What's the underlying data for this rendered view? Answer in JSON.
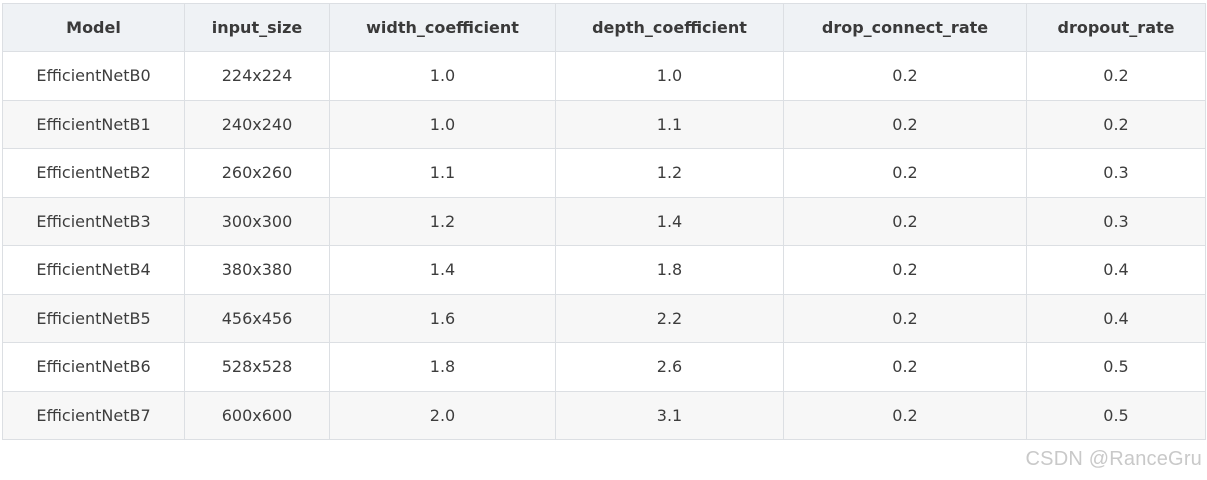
{
  "table": {
    "headers": [
      "Model",
      "input_size",
      "width_coefficient",
      "depth_coefficient",
      "drop_connect_rate",
      "dropout_rate"
    ],
    "rows": [
      [
        "EfficientNetB0",
        "224x224",
        "1.0",
        "1.0",
        "0.2",
        "0.2"
      ],
      [
        "EfficientNetB1",
        "240x240",
        "1.0",
        "1.1",
        "0.2",
        "0.2"
      ],
      [
        "EfficientNetB2",
        "260x260",
        "1.1",
        "1.2",
        "0.2",
        "0.3"
      ],
      [
        "EfficientNetB3",
        "300x300",
        "1.2",
        "1.4",
        "0.2",
        "0.3"
      ],
      [
        "EfficientNetB4",
        "380x380",
        "1.4",
        "1.8",
        "0.2",
        "0.4"
      ],
      [
        "EfficientNetB5",
        "456x456",
        "1.6",
        "2.2",
        "0.2",
        "0.4"
      ],
      [
        "EfficientNetB6",
        "528x528",
        "1.8",
        "2.6",
        "0.2",
        "0.5"
      ],
      [
        "EfficientNetB7",
        "600x600",
        "2.0",
        "3.1",
        "0.2",
        "0.5"
      ]
    ]
  },
  "watermark": "CSDN @RanceGru",
  "colors": {
    "header_bg": "#eff2f5",
    "stripe_bg": "#f7f7f7",
    "border": "#dcdfe3",
    "text": "#3d3d3d",
    "watermark": "#c9c9c9"
  }
}
